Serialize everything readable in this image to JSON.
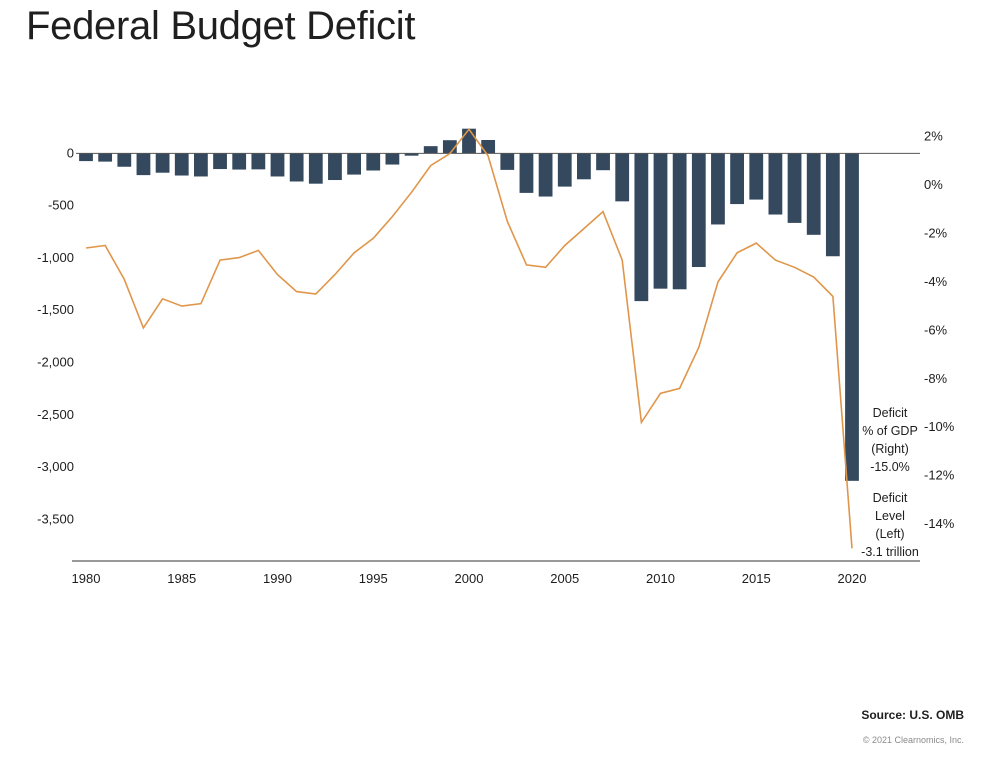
{
  "title": "Federal Budget Deficit",
  "source": "Source: U.S. OMB",
  "copyright": "© 2021 Clearnomics, Inc.",
  "colors": {
    "bars": "#34495e",
    "line": "#e0964a",
    "axis": "#333333"
  },
  "chart_data": {
    "type": "bar",
    "x": [
      1980,
      1981,
      1982,
      1983,
      1984,
      1985,
      1986,
      1987,
      1988,
      1989,
      1990,
      1991,
      1992,
      1993,
      1994,
      1995,
      1996,
      1997,
      1998,
      1999,
      2000,
      2001,
      2002,
      2003,
      2004,
      2005,
      2006,
      2007,
      2008,
      2009,
      2010,
      2011,
      2012,
      2013,
      2014,
      2015,
      2016,
      2017,
      2018,
      2019,
      2020
    ],
    "series": [
      {
        "name": "Deficit Level (Left)",
        "axis": "left",
        "type": "bar",
        "values": [
          -74,
          -79,
          -128,
          -208,
          -185,
          -212,
          -221,
          -150,
          -155,
          -153,
          -221,
          -269,
          -290,
          -255,
          -203,
          -164,
          -107,
          -22,
          69,
          126,
          236,
          128,
          -158,
          -378,
          -413,
          -318,
          -248,
          -161,
          -459,
          -1413,
          -1294,
          -1300,
          -1087,
          -680,
          -485,
          -442,
          -585,
          -665,
          -779,
          -984,
          -3132
        ]
      },
      {
        "name": "Deficit % of GDP (Right)",
        "axis": "right",
        "type": "line",
        "values": [
          -2.6,
          -2.5,
          -3.9,
          -5.9,
          -4.7,
          -5.0,
          -4.9,
          -3.1,
          -3.0,
          -2.7,
          -3.7,
          -4.4,
          -4.5,
          -3.7,
          -2.8,
          -2.2,
          -1.3,
          -0.3,
          0.8,
          1.3,
          2.3,
          1.2,
          -1.5,
          -3.3,
          -3.4,
          -2.5,
          -1.8,
          -1.1,
          -3.1,
          -9.8,
          -8.6,
          -8.4,
          -6.7,
          -4.0,
          -2.8,
          -2.4,
          -3.1,
          -3.4,
          -3.8,
          -4.6,
          -15.0
        ]
      }
    ],
    "y_left": {
      "ticks": [
        0,
        -500,
        -1000,
        -1500,
        -2000,
        -2500,
        -3000,
        -3500
      ],
      "tick_labels": [
        "0",
        "-500",
        "-1,000",
        "-1,500",
        "-2,000",
        "-2,500",
        "-3,000",
        "-3,500"
      ],
      "range": [
        -3870,
        300
      ]
    },
    "y_right": {
      "ticks": [
        2,
        0,
        -2,
        -4,
        -6,
        -8,
        -10,
        -12,
        -14
      ],
      "tick_labels": [
        "2%",
        "0%",
        "-2%",
        "-4%",
        "-6%",
        "-8%",
        "-10%",
        "-12%",
        "-14%"
      ],
      "range": [
        -15.4,
        2.6
      ]
    },
    "x_ticks": [
      1980,
      1985,
      1990,
      1995,
      2000,
      2005,
      2010,
      2015,
      2020
    ],
    "x_tick_labels": [
      "1980",
      "1985",
      "1990",
      "1995",
      "2000",
      "2005",
      "2010",
      "2015",
      "2020"
    ],
    "annotations": {
      "pct": [
        "Deficit",
        "% of GDP",
        "(Right)",
        "-15.0%"
      ],
      "level": [
        "Deficit",
        "Level",
        "(Left)",
        "-3.1 trillion"
      ]
    }
  }
}
